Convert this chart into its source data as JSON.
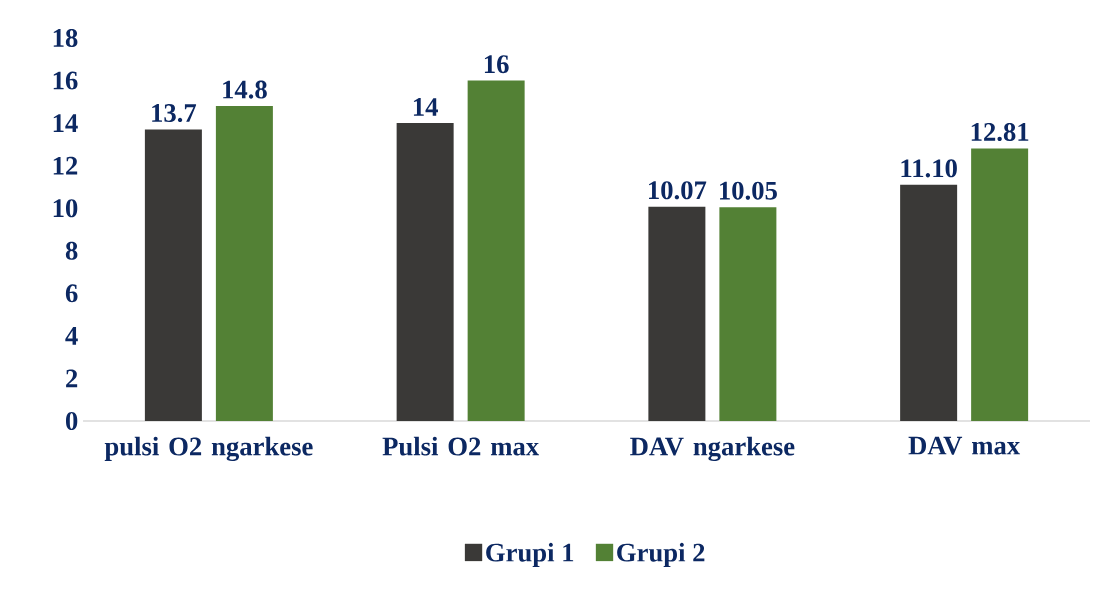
{
  "chart_data": {
    "type": "bar",
    "categories": [
      "pulsi O2 ngarkese",
      "Pulsi O2 max",
      "DAV ngarkese",
      "DAV max"
    ],
    "series": [
      {
        "name": "Grupi 1",
        "color": "#3a3937",
        "values": [
          13.7,
          14,
          10.07,
          11.1
        ],
        "value_labels": [
          "13.7",
          "14",
          "10.07",
          "11.10"
        ]
      },
      {
        "name": "Grupi 2",
        "color": "#538135",
        "values": [
          14.8,
          16,
          10.05,
          12.81
        ],
        "value_labels": [
          "14.8",
          "16",
          "10.05",
          "12.81"
        ]
      }
    ],
    "ylim": [
      0,
      18
    ],
    "yticks": [
      0,
      2,
      4,
      6,
      8,
      10,
      12,
      14,
      16,
      18
    ],
    "legend": "bottom"
  }
}
